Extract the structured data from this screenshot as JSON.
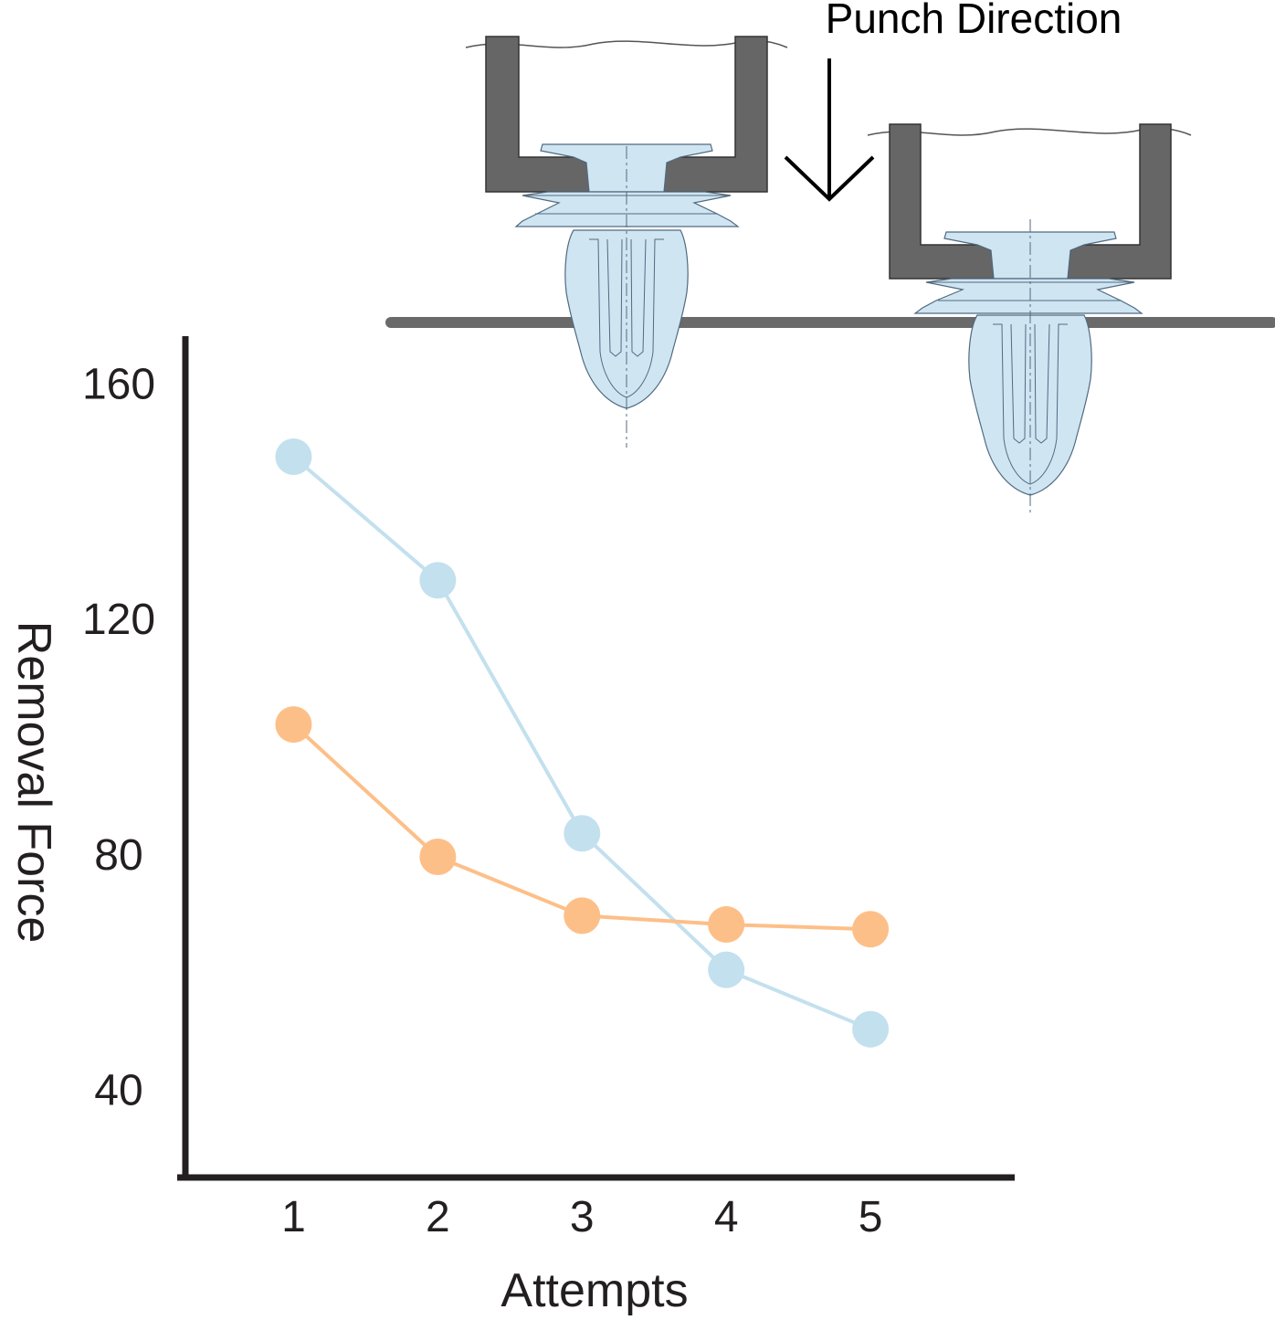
{
  "annotation": {
    "punch_label": "Punch Direction"
  },
  "chart_data": {
    "type": "line",
    "xlabel": "Attempts",
    "ylabel": "Removal Force",
    "x": [
      1,
      2,
      3,
      4,
      5
    ],
    "x_ticks": [
      "1",
      "2",
      "3",
      "4",
      "5"
    ],
    "y_ticks": [
      "40",
      "80",
      "120",
      "160"
    ],
    "ylim": [
      25,
      168
    ],
    "xlim": [
      0.25,
      6.0
    ],
    "grid": false,
    "series": [
      {
        "color": "#c3e0ee",
        "values": [
          147.5,
          126.5,
          83.5,
          60.3,
          50.2
        ]
      },
      {
        "color": "#fdbf88",
        "values": [
          102,
          79.5,
          69.5,
          68.0,
          67.2
        ]
      }
    ]
  }
}
